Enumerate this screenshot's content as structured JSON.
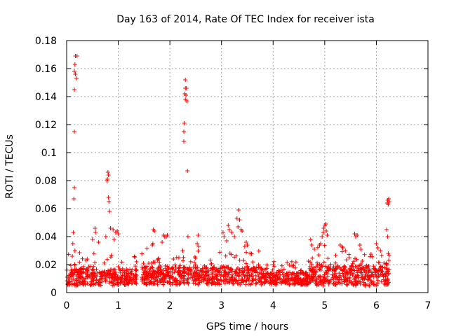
{
  "chart_data": {
    "type": "scatter",
    "title": "Day 163 of 2014, Rate Of TEC Index for receiver ista",
    "xlabel": "GPS time / hours",
    "ylabel": "ROTI / TECUs",
    "xlim": [
      0,
      7
    ],
    "ylim": [
      0,
      0.18
    ],
    "xticks": [
      0,
      1,
      2,
      3,
      4,
      5,
      6,
      7
    ],
    "yticks": [
      0,
      0.02,
      0.04,
      0.06,
      0.08,
      0.1,
      0.12,
      0.14,
      0.16,
      0.18
    ],
    "xtick_labels": [
      "0",
      "1",
      "2",
      "3",
      "4",
      "5",
      "6",
      "7"
    ],
    "ytick_labels": [
      "0",
      "0.02",
      "0.04",
      "0.06",
      "0.08",
      "0.1",
      "0.12",
      "0.14",
      "0.16",
      "0.18"
    ],
    "grid": true,
    "marker": "+",
    "color": "#ff0000",
    "series": [
      {
        "name": "ROTI",
        "segments": [
          {
            "start": 0.0,
            "end": 1.37,
            "base": 0.011,
            "spread": 0.013
          },
          {
            "start": 1.45,
            "end": 3.75,
            "base": 0.012,
            "spread": 0.014
          },
          {
            "start": 3.75,
            "end": 4.7,
            "base": 0.01,
            "spread": 0.01
          },
          {
            "start": 4.7,
            "end": 5.15,
            "base": 0.013,
            "spread": 0.018
          },
          {
            "start": 5.15,
            "end": 6.25,
            "base": 0.012,
            "spread": 0.016
          }
        ],
        "points": [
          {
            "x": 0.17,
            "y": 0.169
          },
          {
            "x": 0.2,
            "y": 0.169
          },
          {
            "x": 0.16,
            "y": 0.163
          },
          {
            "x": 0.15,
            "y": 0.158
          },
          {
            "x": 0.17,
            "y": 0.156
          },
          {
            "x": 0.19,
            "y": 0.153
          },
          {
            "x": 0.15,
            "y": 0.145
          },
          {
            "x": 0.15,
            "y": 0.115
          },
          {
            "x": 0.15,
            "y": 0.075
          },
          {
            "x": 0.14,
            "y": 0.067
          },
          {
            "x": 0.13,
            "y": 0.043
          },
          {
            "x": 0.12,
            "y": 0.035
          },
          {
            "x": 0.16,
            "y": 0.03
          },
          {
            "x": 0.11,
            "y": 0.026
          },
          {
            "x": 0.8,
            "y": 0.086
          },
          {
            "x": 0.81,
            "y": 0.084
          },
          {
            "x": 0.79,
            "y": 0.081
          },
          {
            "x": 0.78,
            "y": 0.08
          },
          {
            "x": 0.81,
            "y": 0.068
          },
          {
            "x": 0.82,
            "y": 0.065
          },
          {
            "x": 0.83,
            "y": 0.058
          },
          {
            "x": 0.85,
            "y": 0.046
          },
          {
            "x": 0.76,
            "y": 0.04
          },
          {
            "x": 0.9,
            "y": 0.045
          },
          {
            "x": 0.95,
            "y": 0.043
          },
          {
            "x": 0.98,
            "y": 0.044
          },
          {
            "x": 1.0,
            "y": 0.042
          },
          {
            "x": 0.92,
            "y": 0.038
          },
          {
            "x": 0.55,
            "y": 0.046
          },
          {
            "x": 0.56,
            "y": 0.043
          },
          {
            "x": 0.5,
            "y": 0.038
          },
          {
            "x": 0.62,
            "y": 0.036
          },
          {
            "x": 1.68,
            "y": 0.045
          },
          {
            "x": 1.7,
            "y": 0.044
          },
          {
            "x": 1.67,
            "y": 0.035
          },
          {
            "x": 1.66,
            "y": 0.034
          },
          {
            "x": 1.88,
            "y": 0.041
          },
          {
            "x": 1.9,
            "y": 0.04
          },
          {
            "x": 1.93,
            "y": 0.04
          },
          {
            "x": 1.95,
            "y": 0.041
          },
          {
            "x": 1.85,
            "y": 0.036
          },
          {
            "x": 2.3,
            "y": 0.152
          },
          {
            "x": 2.3,
            "y": 0.146
          },
          {
            "x": 2.32,
            "y": 0.146
          },
          {
            "x": 2.29,
            "y": 0.142
          },
          {
            "x": 2.31,
            "y": 0.141
          },
          {
            "x": 2.3,
            "y": 0.138
          },
          {
            "x": 2.33,
            "y": 0.137
          },
          {
            "x": 2.28,
            "y": 0.121
          },
          {
            "x": 2.27,
            "y": 0.115
          },
          {
            "x": 2.27,
            "y": 0.108
          },
          {
            "x": 2.34,
            "y": 0.087
          },
          {
            "x": 2.35,
            "y": 0.04
          },
          {
            "x": 2.25,
            "y": 0.03
          },
          {
            "x": 2.55,
            "y": 0.041
          },
          {
            "x": 2.53,
            "y": 0.035
          },
          {
            "x": 2.56,
            "y": 0.033
          },
          {
            "x": 3.03,
            "y": 0.043
          },
          {
            "x": 3.05,
            "y": 0.04
          },
          {
            "x": 3.1,
            "y": 0.037
          },
          {
            "x": 3.13,
            "y": 0.048
          },
          {
            "x": 3.15,
            "y": 0.045
          },
          {
            "x": 3.2,
            "y": 0.043
          },
          {
            "x": 3.25,
            "y": 0.04
          },
          {
            "x": 3.33,
            "y": 0.059
          },
          {
            "x": 3.3,
            "y": 0.053
          },
          {
            "x": 3.35,
            "y": 0.052
          },
          {
            "x": 3.32,
            "y": 0.047
          },
          {
            "x": 3.38,
            "y": 0.045
          },
          {
            "x": 3.4,
            "y": 0.044
          },
          {
            "x": 3.48,
            "y": 0.036
          },
          {
            "x": 3.5,
            "y": 0.034
          },
          {
            "x": 3.45,
            "y": 0.033
          },
          {
            "x": 3.55,
            "y": 0.028
          },
          {
            "x": 4.75,
            "y": 0.034
          },
          {
            "x": 4.8,
            "y": 0.031
          },
          {
            "x": 4.9,
            "y": 0.034
          },
          {
            "x": 4.92,
            "y": 0.035
          },
          {
            "x": 4.98,
            "y": 0.046
          },
          {
            "x": 5.0,
            "y": 0.048
          },
          {
            "x": 5.02,
            "y": 0.049
          },
          {
            "x": 4.97,
            "y": 0.043
          },
          {
            "x": 5.03,
            "y": 0.044
          },
          {
            "x": 5.05,
            "y": 0.041
          },
          {
            "x": 4.95,
            "y": 0.04
          },
          {
            "x": 5.3,
            "y": 0.034
          },
          {
            "x": 5.35,
            "y": 0.032
          },
          {
            "x": 5.4,
            "y": 0.03
          },
          {
            "x": 5.58,
            "y": 0.042
          },
          {
            "x": 5.6,
            "y": 0.04
          },
          {
            "x": 5.63,
            "y": 0.041
          },
          {
            "x": 5.68,
            "y": 0.034
          },
          {
            "x": 5.7,
            "y": 0.031
          },
          {
            "x": 6.0,
            "y": 0.035
          },
          {
            "x": 6.03,
            "y": 0.032
          },
          {
            "x": 6.08,
            "y": 0.03
          },
          {
            "x": 6.22,
            "y": 0.066
          },
          {
            "x": 6.24,
            "y": 0.067
          },
          {
            "x": 6.21,
            "y": 0.064
          },
          {
            "x": 6.23,
            "y": 0.063
          },
          {
            "x": 6.25,
            "y": 0.065
          },
          {
            "x": 6.2,
            "y": 0.045
          },
          {
            "x": 6.22,
            "y": 0.04
          },
          {
            "x": 6.23,
            "y": 0.028
          },
          {
            "x": 6.24,
            "y": 0.023
          },
          {
            "x": 6.21,
            "y": 0.015
          },
          {
            "x": 6.22,
            "y": 0.006
          }
        ]
      }
    ]
  }
}
